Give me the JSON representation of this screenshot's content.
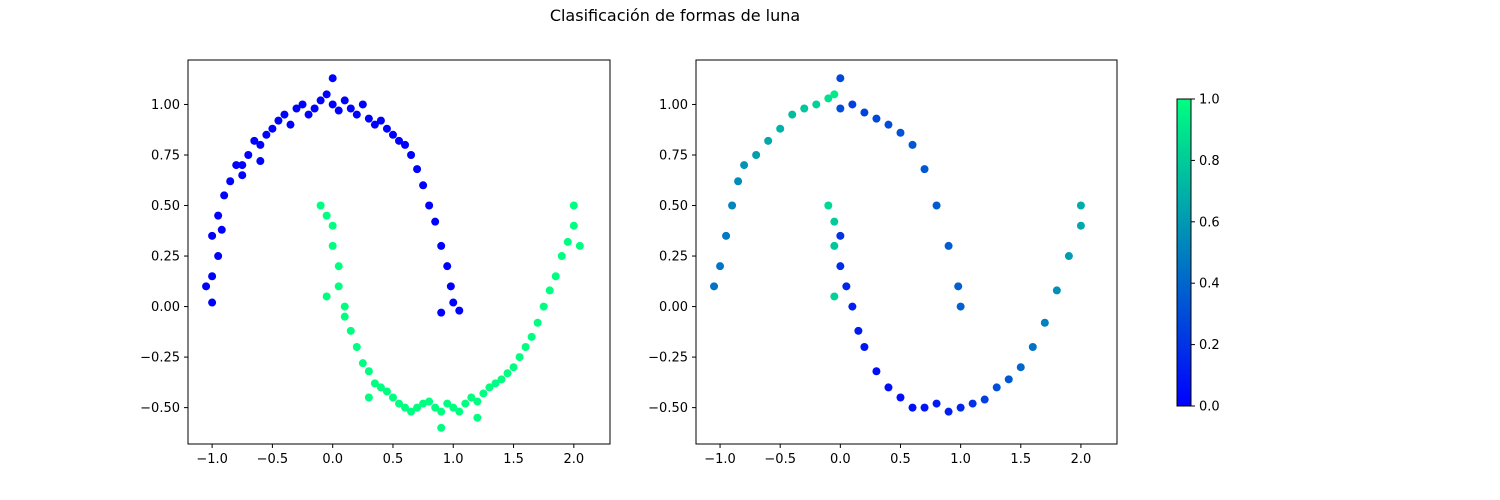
{
  "figure": {
    "suptitle": "Clasificación de formas de luna"
  },
  "chart_data": [
    {
      "type": "scatter",
      "title": "",
      "xlabel": "",
      "ylabel": "",
      "xlim": [
        -1.2,
        2.3
      ],
      "ylim": [
        -0.68,
        1.22
      ],
      "xticks": [
        -1.0,
        -0.5,
        0.0,
        0.5,
        1.0,
        1.5,
        2.0
      ],
      "xtick_labels": [
        "−1.0",
        "−0.5",
        "0.0",
        "0.5",
        "1.0",
        "1.5",
        "2.0"
      ],
      "yticks": [
        -0.5,
        -0.25,
        0.0,
        0.25,
        0.5,
        0.75,
        1.0
      ],
      "ytick_labels": [
        "−0.50",
        "−0.25",
        "0.00",
        "0.25",
        "0.50",
        "0.75",
        "1.00"
      ],
      "colormap": [
        "#0000ff",
        "#00ff80"
      ],
      "grid": false,
      "series": [
        {
          "color_value": 0,
          "points": [
            [
              -1.05,
              0.1
            ],
            [
              -1.0,
              0.15
            ],
            [
              -1.0,
              0.35
            ],
            [
              -0.95,
              0.45
            ],
            [
              -0.95,
              0.25
            ],
            [
              -0.9,
              0.55
            ],
            [
              -0.85,
              0.62
            ],
            [
              -0.8,
              0.7
            ],
            [
              -0.75,
              0.7
            ],
            [
              -0.7,
              0.75
            ],
            [
              -0.65,
              0.82
            ],
            [
              -0.6,
              0.8
            ],
            [
              -0.55,
              0.85
            ],
            [
              -0.5,
              0.88
            ],
            [
              -0.45,
              0.92
            ],
            [
              -0.4,
              0.95
            ],
            [
              -0.35,
              0.9
            ],
            [
              -0.3,
              0.98
            ],
            [
              -0.25,
              1.0
            ],
            [
              -0.2,
              0.95
            ],
            [
              -0.15,
              0.98
            ],
            [
              -0.1,
              1.02
            ],
            [
              -0.05,
              1.05
            ],
            [
              0.0,
              1.0
            ],
            [
              0.0,
              1.13
            ],
            [
              0.05,
              0.97
            ],
            [
              0.1,
              1.02
            ],
            [
              0.15,
              0.98
            ],
            [
              0.2,
              0.95
            ],
            [
              0.25,
              1.0
            ],
            [
              0.3,
              0.93
            ],
            [
              0.35,
              0.9
            ],
            [
              0.4,
              0.92
            ],
            [
              0.45,
              0.88
            ],
            [
              0.5,
              0.85
            ],
            [
              0.55,
              0.82
            ],
            [
              0.6,
              0.8
            ],
            [
              0.65,
              0.75
            ],
            [
              0.7,
              0.68
            ],
            [
              0.75,
              0.6
            ],
            [
              0.8,
              0.5
            ],
            [
              0.85,
              0.42
            ],
            [
              0.9,
              0.3
            ],
            [
              0.95,
              0.2
            ],
            [
              0.98,
              0.1
            ],
            [
              1.0,
              0.02
            ],
            [
              1.05,
              -0.02
            ],
            [
              0.9,
              -0.03
            ],
            [
              -0.75,
              0.65
            ],
            [
              -0.6,
              0.72
            ],
            [
              -1.0,
              0.02
            ],
            [
              -0.92,
              0.38
            ]
          ]
        },
        {
          "color_value": 1,
          "points": [
            [
              -0.1,
              0.5
            ],
            [
              -0.05,
              0.45
            ],
            [
              0.0,
              0.4
            ],
            [
              0.0,
              0.3
            ],
            [
              0.05,
              0.2
            ],
            [
              0.05,
              0.1
            ],
            [
              0.1,
              0.0
            ],
            [
              0.1,
              -0.05
            ],
            [
              0.15,
              -0.12
            ],
            [
              0.2,
              -0.2
            ],
            [
              0.25,
              -0.28
            ],
            [
              0.3,
              -0.32
            ],
            [
              0.35,
              -0.38
            ],
            [
              0.4,
              -0.4
            ],
            [
              0.45,
              -0.42
            ],
            [
              0.5,
              -0.45
            ],
            [
              0.55,
              -0.48
            ],
            [
              0.6,
              -0.5
            ],
            [
              0.65,
              -0.52
            ],
            [
              0.7,
              -0.5
            ],
            [
              0.75,
              -0.48
            ],
            [
              0.8,
              -0.47
            ],
            [
              0.85,
              -0.5
            ],
            [
              0.9,
              -0.52
            ],
            [
              0.95,
              -0.48
            ],
            [
              1.0,
              -0.5
            ],
            [
              1.05,
              -0.52
            ],
            [
              1.1,
              -0.48
            ],
            [
              1.15,
              -0.45
            ],
            [
              1.2,
              -0.47
            ],
            [
              1.25,
              -0.43
            ],
            [
              1.3,
              -0.4
            ],
            [
              1.35,
              -0.38
            ],
            [
              1.4,
              -0.36
            ],
            [
              1.45,
              -0.33
            ],
            [
              1.5,
              -0.3
            ],
            [
              1.55,
              -0.25
            ],
            [
              1.6,
              -0.2
            ],
            [
              1.65,
              -0.15
            ],
            [
              1.7,
              -0.08
            ],
            [
              1.75,
              0.0
            ],
            [
              1.8,
              0.08
            ],
            [
              1.85,
              0.15
            ],
            [
              1.9,
              0.25
            ],
            [
              1.95,
              0.32
            ],
            [
              2.0,
              0.4
            ],
            [
              2.0,
              0.5
            ],
            [
              2.05,
              0.3
            ],
            [
              -0.05,
              0.05
            ],
            [
              0.9,
              -0.6
            ],
            [
              1.2,
              -0.55
            ],
            [
              0.3,
              -0.45
            ]
          ]
        }
      ]
    },
    {
      "type": "scatter",
      "title": "",
      "xlabel": "",
      "ylabel": "",
      "xlim": [
        -1.2,
        2.3
      ],
      "ylim": [
        -0.68,
        1.22
      ],
      "xticks": [
        -1.0,
        -0.5,
        0.0,
        0.5,
        1.0,
        1.5,
        2.0
      ],
      "xtick_labels": [
        "−1.0",
        "−0.5",
        "0.0",
        "0.5",
        "1.0",
        "1.5",
        "2.0"
      ],
      "yticks": [
        -0.5,
        -0.25,
        0.0,
        0.25,
        0.5,
        0.75,
        1.0
      ],
      "ytick_labels": [
        "−0.50",
        "−0.25",
        "0.00",
        "0.25",
        "0.50",
        "0.75",
        "1.00"
      ],
      "colormap": [
        "#0000ff",
        "#00ff80"
      ],
      "grid": false,
      "points": [
        [
          -1.05,
          0.1,
          0.45
        ],
        [
          -1.0,
          0.2,
          0.46
        ],
        [
          -0.95,
          0.35,
          0.48
        ],
        [
          -0.9,
          0.5,
          0.52
        ],
        [
          -0.85,
          0.62,
          0.55
        ],
        [
          -0.8,
          0.7,
          0.58
        ],
        [
          -0.7,
          0.75,
          0.62
        ],
        [
          -0.6,
          0.82,
          0.66
        ],
        [
          -0.5,
          0.88,
          0.7
        ],
        [
          -0.4,
          0.95,
          0.74
        ],
        [
          -0.3,
          0.98,
          0.78
        ],
        [
          -0.2,
          1.0,
          0.82
        ],
        [
          -0.1,
          1.03,
          0.88
        ],
        [
          -0.05,
          1.05,
          0.92
        ],
        [
          0.0,
          0.98,
          0.3
        ],
        [
          0.0,
          1.13,
          0.28
        ],
        [
          0.1,
          1.0,
          0.25
        ],
        [
          0.2,
          0.96,
          0.26
        ],
        [
          0.3,
          0.93,
          0.28
        ],
        [
          0.4,
          0.9,
          0.3
        ],
        [
          0.5,
          0.86,
          0.32
        ],
        [
          0.6,
          0.8,
          0.34
        ],
        [
          0.7,
          0.68,
          0.35
        ],
        [
          0.8,
          0.5,
          0.36
        ],
        [
          0.9,
          0.3,
          0.37
        ],
        [
          0.98,
          0.1,
          0.38
        ],
        [
          1.0,
          0.0,
          0.38
        ],
        [
          -0.1,
          0.5,
          0.85
        ],
        [
          -0.05,
          0.42,
          0.8
        ],
        [
          0.0,
          0.35,
          0.2
        ],
        [
          0.0,
          0.2,
          0.18
        ],
        [
          0.05,
          0.1,
          0.15
        ],
        [
          0.1,
          0.0,
          0.12
        ],
        [
          0.15,
          -0.12,
          0.1
        ],
        [
          0.2,
          -0.2,
          0.08
        ],
        [
          0.3,
          -0.32,
          0.06
        ],
        [
          0.4,
          -0.4,
          0.05
        ],
        [
          0.5,
          -0.45,
          0.05
        ],
        [
          0.6,
          -0.5,
          0.06
        ],
        [
          0.7,
          -0.5,
          0.08
        ],
        [
          0.8,
          -0.48,
          0.1
        ],
        [
          0.9,
          -0.52,
          0.12
        ],
        [
          1.0,
          -0.5,
          0.15
        ],
        [
          1.1,
          -0.48,
          0.2
        ],
        [
          1.2,
          -0.46,
          0.25
        ],
        [
          1.3,
          -0.4,
          0.3
        ],
        [
          1.4,
          -0.36,
          0.34
        ],
        [
          1.5,
          -0.3,
          0.4
        ],
        [
          1.6,
          -0.2,
          0.45
        ],
        [
          1.7,
          -0.08,
          0.5
        ],
        [
          1.8,
          0.08,
          0.56
        ],
        [
          1.9,
          0.25,
          0.62
        ],
        [
          2.0,
          0.4,
          0.66
        ],
        [
          2.0,
          0.5,
          0.68
        ],
        [
          -0.05,
          0.05,
          0.82
        ],
        [
          -0.05,
          0.3,
          0.78
        ]
      ]
    }
  ],
  "colorbar": {
    "ticks": [
      0.0,
      0.2,
      0.4,
      0.6,
      0.8,
      1.0
    ],
    "tick_labels": [
      "0.0",
      "0.2",
      "0.4",
      "0.6",
      "0.8",
      "1.0"
    ],
    "colormap": [
      "#0000ff",
      "#00ff80"
    ]
  }
}
